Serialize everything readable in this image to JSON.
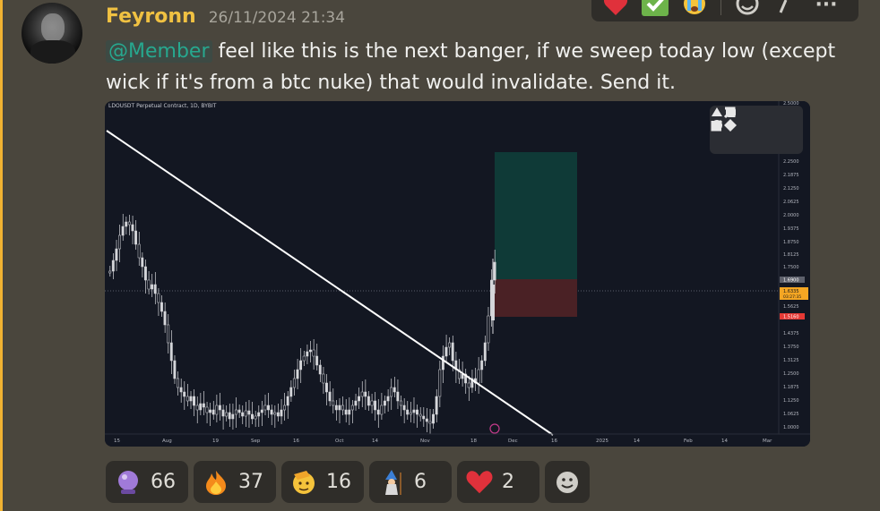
{
  "message": {
    "username": "Feyronn",
    "timestamp": "26/11/2024 21:34",
    "mention": "@Member",
    "text": " feel like this is the next banger, if we sweep today low (except wick if it's from a btc nuke) that would invalidate. Send it."
  },
  "toolbar": {
    "items": [
      "heart-icon",
      "check-icon",
      "crying-face-icon",
      "add-reaction-icon",
      "more-icon"
    ],
    "more_label": "···"
  },
  "chart": {
    "title": "LDOUSDT Perpetual Contract, 1D, BYBIT",
    "price_ticks": [
      "2.5000",
      "2.3125",
      "2.2500",
      "2.1875",
      "2.1250",
      "2.0625",
      "2.0000",
      "1.9375",
      "1.8750",
      "1.8125",
      "1.7500",
      "1.5625",
      "1.4375",
      "1.3750",
      "1.3125",
      "1.2500",
      "1.1875",
      "1.1250",
      "1.0625",
      "1.0000"
    ],
    "price_tags": {
      "target": "1.6900",
      "current": "1.6335",
      "countdown": "03:27:35",
      "stop": "1.5160"
    },
    "time_ticks": [
      "15",
      "Aug",
      "19",
      "Sep",
      "16",
      "Oct",
      "14",
      "Nov",
      "18",
      "Dec",
      "16",
      "2025",
      "14",
      "Feb",
      "14",
      "Mar"
    ],
    "colors": {
      "bg": "#131722",
      "target_zone": "#0f3a37",
      "stop_zone": "#4a2125",
      "candle": "#d5d6da",
      "trend": "#ffffff"
    }
  },
  "reactions": [
    {
      "icon": "crystal-ball-icon",
      "count": "66"
    },
    {
      "icon": "fire-icon",
      "count": "37"
    },
    {
      "icon": "saluting-face-icon",
      "count": "16"
    },
    {
      "icon": "wizard-icon",
      "count": "6"
    },
    {
      "icon": "heart-icon",
      "count": "2"
    }
  ]
}
